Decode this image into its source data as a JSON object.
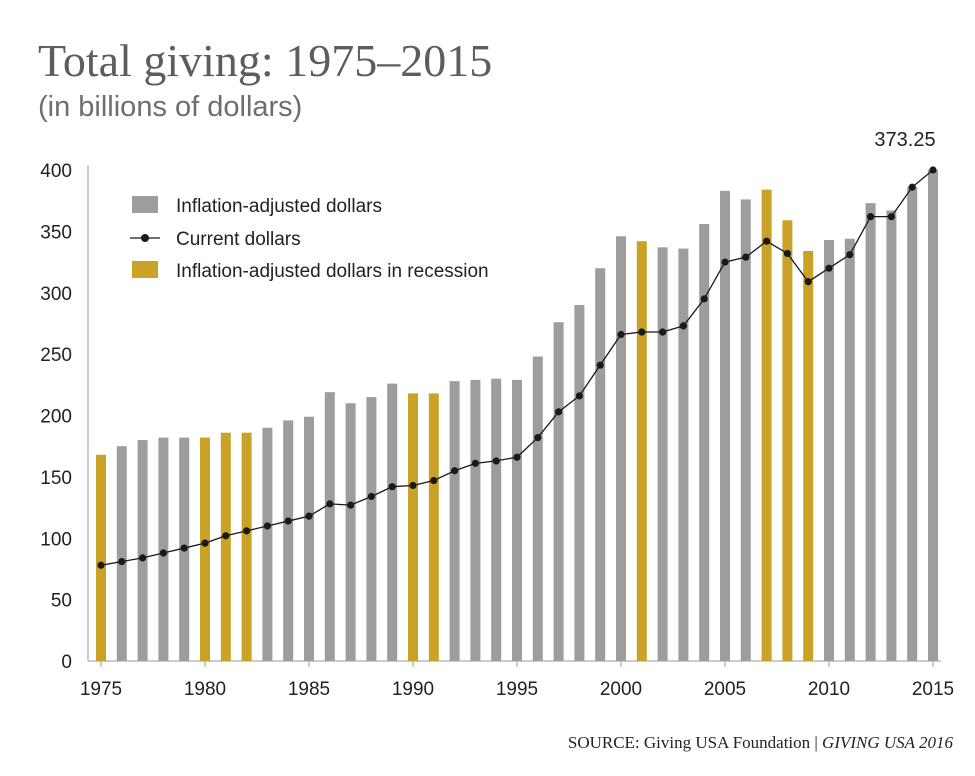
{
  "title": "Total giving: 1975–2015",
  "subtitle": "(in billions of dollars)",
  "source": {
    "prefix": "SOURCE: Giving USA Foundation | ",
    "publication": "GIVING USA 2016"
  },
  "colors": {
    "inflation_adjusted": "#9d9d9d",
    "recession": "#c9a227",
    "current_line": "#1a1a1a"
  },
  "chart_data": {
    "type": "bar",
    "x": [
      1975,
      1976,
      1977,
      1978,
      1979,
      1980,
      1981,
      1982,
      1983,
      1984,
      1985,
      1986,
      1987,
      1988,
      1989,
      1990,
      1991,
      1992,
      1993,
      1994,
      1995,
      1996,
      1997,
      1998,
      1999,
      2000,
      2001,
      2002,
      2003,
      2004,
      2005,
      2006,
      2007,
      2008,
      2009,
      2010,
      2011,
      2012,
      2013,
      2014,
      2015
    ],
    "series": [
      {
        "name": "Inflation-adjusted dollars",
        "type": "bar",
        "values": [
          168,
          175,
          180,
          182,
          182,
          182,
          186,
          186,
          190,
          196,
          199,
          219,
          210,
          215,
          226,
          218,
          218,
          228,
          229,
          230,
          229,
          248,
          276,
          290,
          320,
          346,
          342,
          337,
          336,
          356,
          383,
          376,
          384,
          359,
          334,
          343,
          344,
          373,
          367,
          386,
          400
        ]
      },
      {
        "name": "Current dollars",
        "type": "line",
        "values": [
          78,
          81,
          84,
          88,
          92,
          96,
          102,
          106,
          110,
          114,
          118,
          128,
          127,
          134,
          142,
          143,
          147,
          155,
          161,
          163,
          166,
          182,
          203,
          216,
          241,
          266,
          268,
          268,
          273,
          295,
          325,
          329,
          342,
          332,
          309,
          320,
          331,
          362,
          362,
          386,
          400
        ]
      }
    ],
    "recession_years": [
      1975,
      1980,
      1981,
      1982,
      1990,
      1991,
      2001,
      2007,
      2008,
      2009
    ],
    "recession_label": "Inflation-adjusted dollars in recession",
    "annotation": "373.25",
    "ylim": [
      0,
      400
    ],
    "yticks": [
      0,
      50,
      100,
      150,
      200,
      250,
      300,
      350,
      400
    ],
    "xticks": [
      1975,
      1980,
      1985,
      1990,
      1995,
      2000,
      2005,
      2010,
      2015
    ],
    "xlabel": "",
    "ylabel": "",
    "legend_position": "top-left",
    "grid": false
  }
}
